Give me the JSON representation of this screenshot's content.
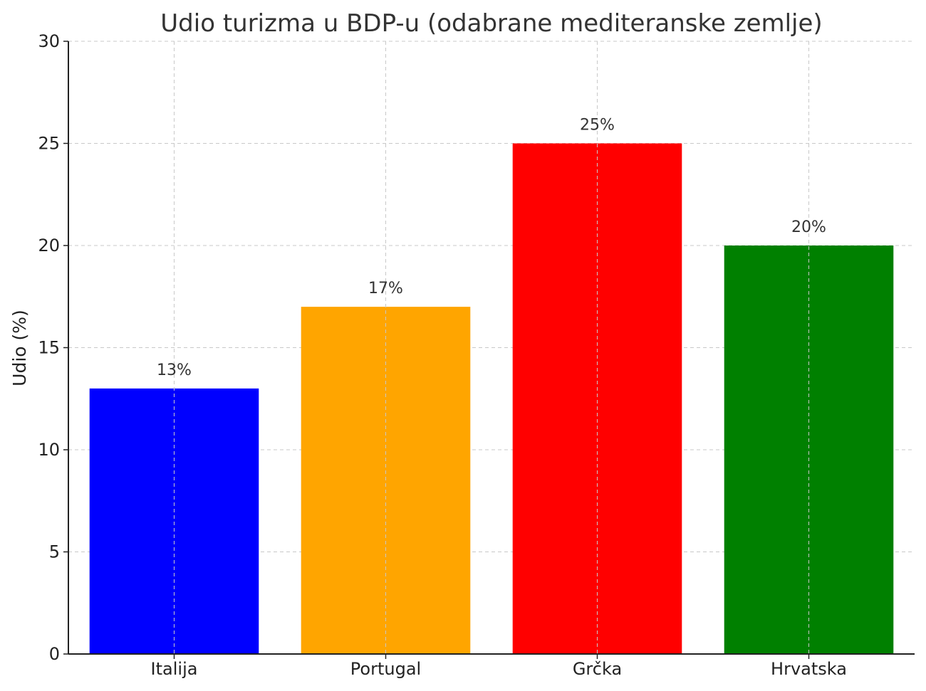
{
  "chart_data": {
    "type": "bar",
    "title": "Udio turizma u BDP-u (odabrane mediteranske zemlje)",
    "xlabel": "",
    "ylabel": "Udio (%)",
    "ylim": [
      0,
      30
    ],
    "yticks": [
      0,
      5,
      10,
      15,
      20,
      25,
      30
    ],
    "grid": true,
    "categories": [
      "Italija",
      "Portugal",
      "Grčka",
      "Hrvatska"
    ],
    "values": [
      13,
      17,
      25,
      20
    ],
    "data_labels": [
      "13%",
      "17%",
      "25%",
      "20%"
    ],
    "colors": [
      "#0000ff",
      "#ffa500",
      "#ff0000",
      "#008000"
    ]
  }
}
